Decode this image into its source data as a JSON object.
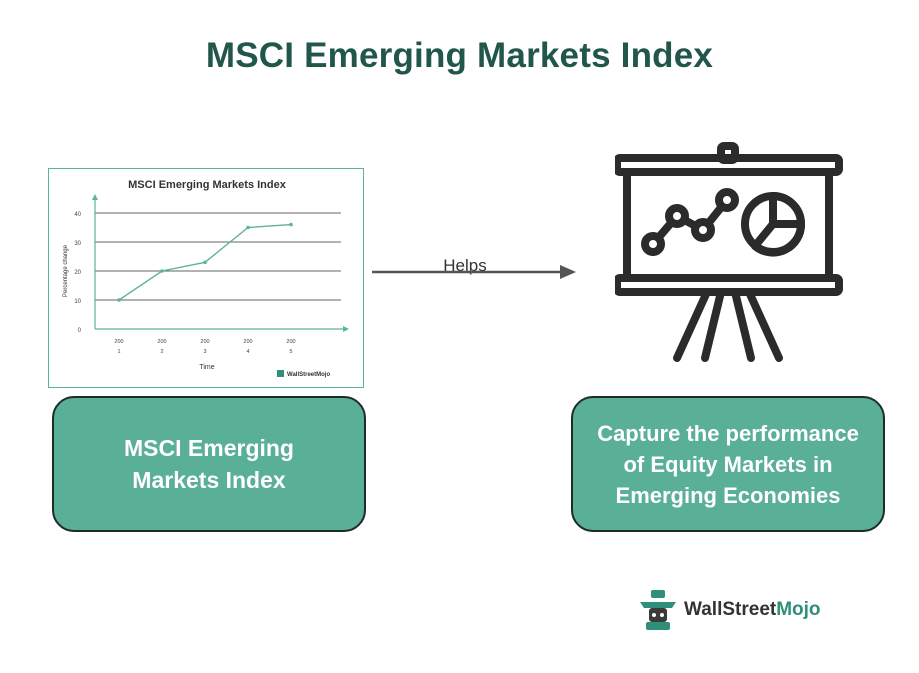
{
  "title": "MSCI Emerging Markets Index",
  "connector_label": "Helps",
  "left_box": {
    "text": "MSCI Emerging Markets Index"
  },
  "right_box": {
    "text": "Capture the performance of Equity Markets in Emerging Economies"
  },
  "brand": {
    "part1": "WallStreet",
    "part2": "Mojo"
  },
  "colors": {
    "title": "#21574b",
    "box_fill": "#5aaf97",
    "box_border": "#1f2b28",
    "accent": "#5bb49c",
    "arrow": "#555555"
  },
  "icons": [
    "line-chart-thumbnail",
    "arrow-right-icon",
    "presentation-board-icon",
    "wallstreetmojo-logo-icon"
  ],
  "chart_data": {
    "type": "line",
    "title": "MSCI Emerging Markets Index",
    "xlabel": "Time",
    "ylabel": "Percentage change",
    "categories": [
      "200 1",
      "200 2",
      "200 3",
      "200 4",
      "200 5"
    ],
    "values": [
      10,
      20,
      23,
      35,
      36
    ],
    "ylim": [
      0,
      40
    ],
    "yticks": [
      0,
      10,
      20,
      30,
      40
    ],
    "grid": true,
    "watermark": "WallStreetMojo"
  }
}
